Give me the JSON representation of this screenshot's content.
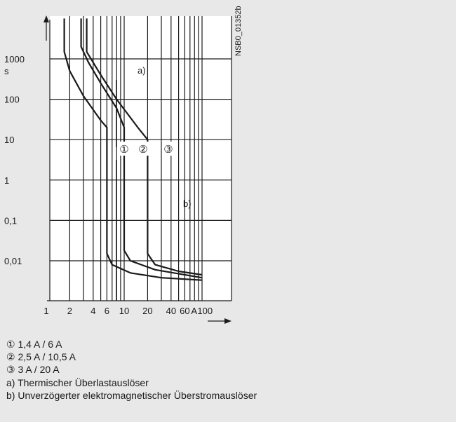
{
  "chart_data": {
    "type": "line",
    "x_scale": "log",
    "y_scale": "log",
    "x_unit": "A",
    "y_unit": "s",
    "xlim": [
      0.7,
      100
    ],
    "ylim": [
      0.001,
      10000
    ],
    "x_ticks": [
      {
        "value": 1,
        "label": "1"
      },
      {
        "value": 2,
        "label": "2"
      },
      {
        "value": 4,
        "label": "4"
      },
      {
        "value": 6,
        "label": "6"
      },
      {
        "value": 10,
        "label": "10"
      },
      {
        "value": 20,
        "label": "20"
      },
      {
        "value": 40,
        "label": "40"
      },
      {
        "value": 60,
        "label": "60"
      },
      {
        "value": 100,
        "label": "100"
      }
    ],
    "y_ticks": [
      {
        "value": 1000,
        "label": "1000"
      },
      {
        "value": 100,
        "label": "100"
      },
      {
        "value": 10,
        "label": "10"
      },
      {
        "value": 1,
        "label": "1"
      },
      {
        "value": 0.1,
        "label": "0,1"
      },
      {
        "value": 0.01,
        "label": "0,01"
      }
    ],
    "grid": true,
    "code_label": "NSB0_01352b",
    "region_labels": {
      "a": "a)",
      "b": "b)"
    },
    "series": [
      {
        "marker": "①",
        "points": [
          [
            1.7,
            10000
          ],
          [
            1.7,
            1500
          ],
          [
            2,
            500
          ],
          [
            3,
            120
          ],
          [
            5,
            30
          ],
          [
            6,
            20
          ],
          [
            6,
            0.015
          ],
          [
            7,
            0.008
          ],
          [
            12,
            0.005
          ],
          [
            30,
            0.0038
          ],
          [
            100,
            0.0033
          ]
        ]
      },
      {
        "marker": "②",
        "points": [
          [
            2.8,
            10000
          ],
          [
            2.8,
            2000
          ],
          [
            3.5,
            800
          ],
          [
            5,
            250
          ],
          [
            8,
            60
          ],
          [
            10,
            20
          ],
          [
            10,
            0.018
          ],
          [
            12,
            0.01
          ],
          [
            25,
            0.006
          ],
          [
            100,
            0.0038
          ]
        ]
      },
      {
        "marker": "③",
        "points": [
          [
            3.3,
            10000
          ],
          [
            3.3,
            1500
          ],
          [
            5,
            400
          ],
          [
            8,
            100
          ],
          [
            15,
            20
          ],
          [
            20,
            10
          ],
          [
            20,
            0.015
          ],
          [
            25,
            0.008
          ],
          [
            50,
            0.0055
          ],
          [
            100,
            0.0045
          ]
        ]
      }
    ]
  },
  "legend": [
    "① 1,4 A / 6 A",
    "② 2,5 A / 10,5 A",
    "③ 3 A / 20 A",
    "a) Thermischer Überlastauslöser",
    "b) Unverzögerter elektromagnetischer Überstromauslöser"
  ]
}
